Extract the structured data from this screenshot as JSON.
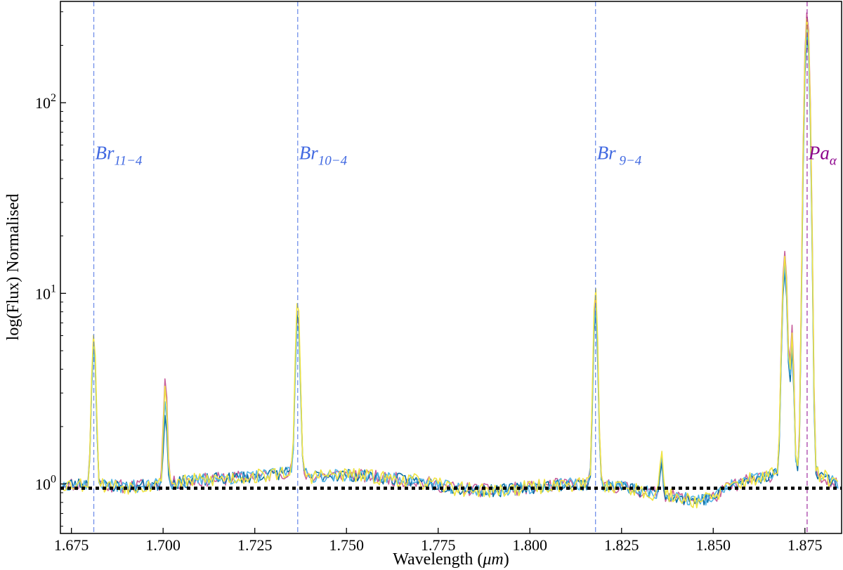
{
  "chart_data": {
    "type": "line",
    "title": "",
    "xlabel": "Wavelength (μm)",
    "xlabel_prefix": "Wavelength (",
    "xlabel_unit": "μm",
    "xlabel_suffix": ")",
    "ylabel": "log(Flux) Normalised",
    "y_scale": "log",
    "xlim": [
      1.672,
      1.885
    ],
    "ylim": [
      0.55,
      340
    ],
    "grid": false,
    "x_ticks": [
      1.675,
      1.7,
      1.725,
      1.75,
      1.775,
      1.8,
      1.825,
      1.85,
      1.875
    ],
    "x_tick_labels": [
      "1.675",
      "1.700",
      "1.725",
      "1.750",
      "1.775",
      "1.800",
      "1.825",
      "1.850",
      "1.875"
    ],
    "y_ticks": [
      1,
      10,
      100
    ],
    "y_tick_labels": [
      {
        "base": "10",
        "exp": "0"
      },
      {
        "base": "10",
        "exp": "1"
      },
      {
        "base": "10",
        "exp": "2"
      }
    ],
    "baseline": {
      "y": 0.95,
      "color": "#000000",
      "style": "dotted"
    },
    "reference_lines": [
      {
        "x": 1.6811,
        "main": "Br",
        "sub": "11−4",
        "color": "#4169e1"
      },
      {
        "x": 1.7367,
        "main": "Br",
        "sub": "10−4",
        "color": "#4169e1"
      },
      {
        "x": 1.8179,
        "main": "Br",
        "sub": " 9−4",
        "color": "#4169e1"
      },
      {
        "x": 1.8756,
        "main": "Pa",
        "sub": "α",
        "color": "#8b008b"
      }
    ],
    "label_y": 55,
    "continuum": [
      [
        1.672,
        1.0
      ],
      [
        1.68,
        1.0
      ],
      [
        1.69,
        0.97
      ],
      [
        1.7,
        1.0
      ],
      [
        1.71,
        1.05
      ],
      [
        1.72,
        1.08
      ],
      [
        1.73,
        1.12
      ],
      [
        1.736,
        1.2
      ],
      [
        1.74,
        1.1
      ],
      [
        1.75,
        1.12
      ],
      [
        1.76,
        1.08
      ],
      [
        1.77,
        1.03
      ],
      [
        1.78,
        0.95
      ],
      [
        1.79,
        0.92
      ],
      [
        1.8,
        0.96
      ],
      [
        1.81,
        1.0
      ],
      [
        1.818,
        1.0
      ],
      [
        1.825,
        0.97
      ],
      [
        1.83,
        0.92
      ],
      [
        1.84,
        0.86
      ],
      [
        1.845,
        0.82
      ],
      [
        1.85,
        0.85
      ],
      [
        1.855,
        0.98
      ],
      [
        1.86,
        1.05
      ],
      [
        1.866,
        1.12
      ],
      [
        1.875,
        1.2
      ],
      [
        1.88,
        1.1
      ],
      [
        1.884,
        1.0
      ]
    ],
    "series": [
      {
        "color": "#c8609d",
        "seed": 11,
        "noise": 0.06,
        "peaks": [
          {
            "x": 1.6811,
            "h": 5.8,
            "w": 0.0005
          },
          {
            "x": 1.7006,
            "h": 3.7,
            "w": 0.00045
          },
          {
            "x": 1.7367,
            "h": 7.8,
            "w": 0.0005
          },
          {
            "x": 1.8179,
            "h": 9.5,
            "w": 0.0005
          },
          {
            "x": 1.8358,
            "h": 1.5,
            "w": 0.0004
          },
          {
            "x": 1.8695,
            "h": 16.5,
            "w": 0.0006
          },
          {
            "x": 1.8715,
            "h": 6.5,
            "w": 0.0004
          },
          {
            "x": 1.8756,
            "h": 300,
            "w": 0.0006
          }
        ]
      },
      {
        "color": "#0b6fa6",
        "seed": 23,
        "noise": 0.055,
        "peaks": [
          {
            "x": 1.6811,
            "h": 5.5,
            "w": 0.0005
          },
          {
            "x": 1.7006,
            "h": 2.3,
            "w": 0.00045
          },
          {
            "x": 1.7367,
            "h": 8.0,
            "w": 0.0005
          },
          {
            "x": 1.8179,
            "h": 8.2,
            "w": 0.0005
          },
          {
            "x": 1.8358,
            "h": 1.4,
            "w": 0.0004
          },
          {
            "x": 1.8695,
            "h": 13.0,
            "w": 0.0006
          },
          {
            "x": 1.8715,
            "h": 5.0,
            "w": 0.0004
          },
          {
            "x": 1.8756,
            "h": 230,
            "w": 0.0006
          }
        ]
      },
      {
        "color": "#52b5e6",
        "seed": 37,
        "noise": 0.055,
        "peaks": [
          {
            "x": 1.6811,
            "h": 5.3,
            "w": 0.0005
          },
          {
            "x": 1.7006,
            "h": 2.8,
            "w": 0.00045
          },
          {
            "x": 1.7367,
            "h": 7.2,
            "w": 0.0005
          },
          {
            "x": 1.8179,
            "h": 8.8,
            "w": 0.0005
          },
          {
            "x": 1.8358,
            "h": 1.5,
            "w": 0.0004
          },
          {
            "x": 1.8695,
            "h": 14.0,
            "w": 0.0006
          },
          {
            "x": 1.8715,
            "h": 5.5,
            "w": 0.0004
          },
          {
            "x": 1.8756,
            "h": 250,
            "w": 0.0006
          }
        ]
      },
      {
        "color": "#f0e442",
        "seed": 53,
        "noise": 0.065,
        "peaks": [
          {
            "x": 1.6811,
            "h": 6.2,
            "w": 0.0005
          },
          {
            "x": 1.7006,
            "h": 3.3,
            "w": 0.00045
          },
          {
            "x": 1.7367,
            "h": 9.2,
            "w": 0.0005
          },
          {
            "x": 1.8179,
            "h": 10.8,
            "w": 0.0005
          },
          {
            "x": 1.8358,
            "h": 1.6,
            "w": 0.0004
          },
          {
            "x": 1.8695,
            "h": 15.5,
            "w": 0.0006
          },
          {
            "x": 1.8715,
            "h": 6.0,
            "w": 0.0004
          },
          {
            "x": 1.8756,
            "h": 280,
            "w": 0.0006
          }
        ]
      }
    ]
  }
}
